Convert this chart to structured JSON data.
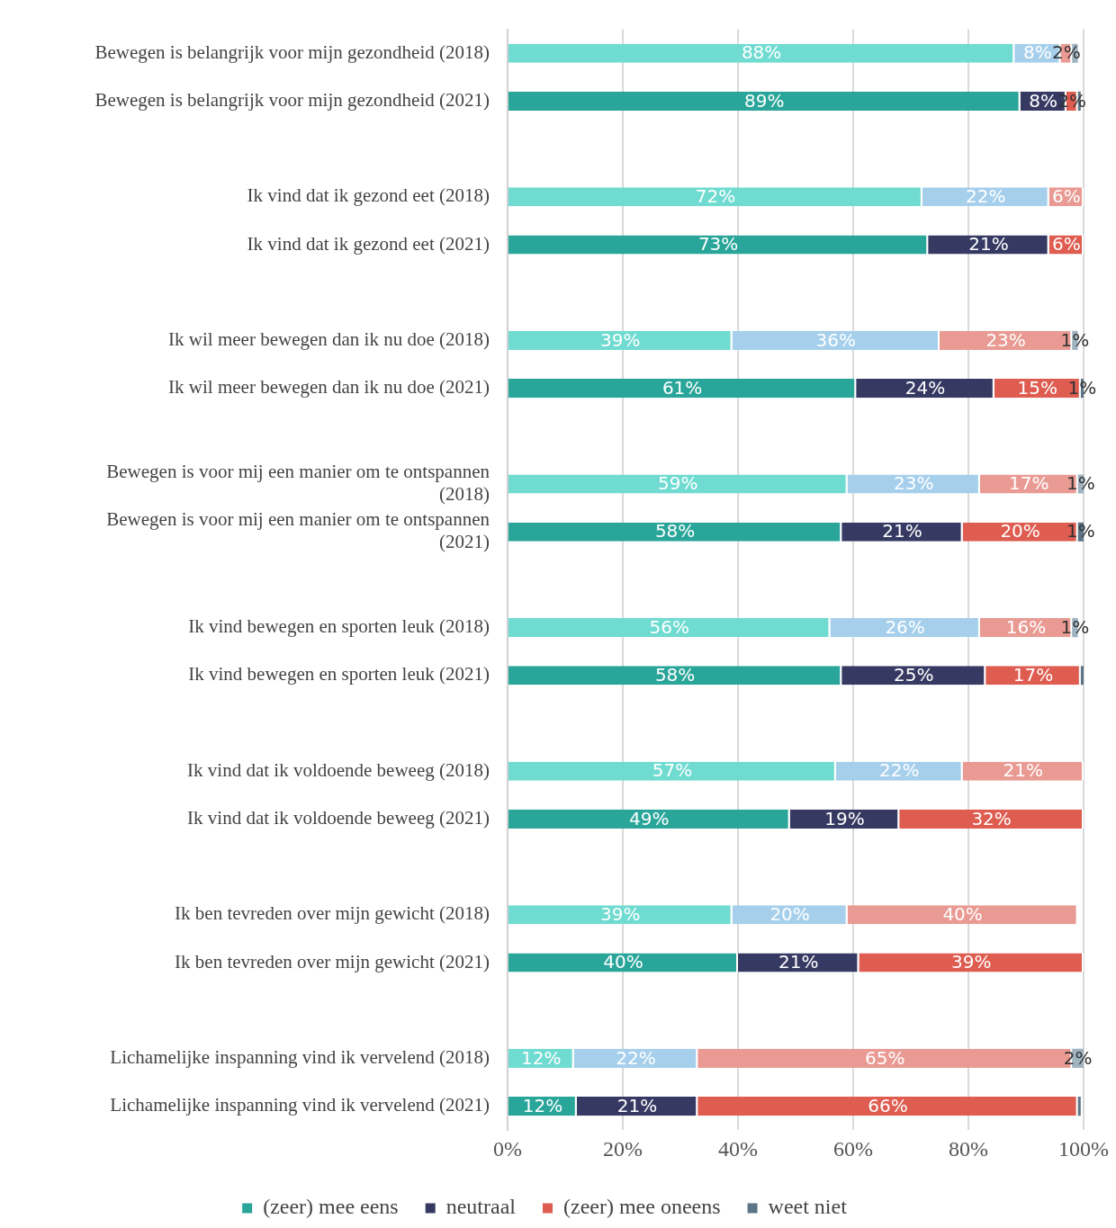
{
  "chart_data": {
    "type": "bar",
    "orientation": "horizontal",
    "stacked": true,
    "categories": [
      "Bewegen is belangrijk voor mijn gezondheid (2018)",
      "Bewegen is belangrijk voor mijn gezondheid (2021)",
      null,
      "Ik vind dat ik gezond eet (2018)",
      "Ik vind dat ik gezond eet (2021)",
      null,
      "Ik wil meer bewegen dan ik nu doe (2018)",
      "Ik wil meer bewegen dan ik nu doe (2021)",
      null,
      "Bewegen is voor mij een manier om te ontspannen (2018)",
      "Bewegen is voor mij een manier om te ontspannen (2021)",
      null,
      "Ik vind bewegen en sporten leuk (2018)",
      "Ik vind bewegen en sporten leuk (2021)",
      null,
      "Ik vind dat ik voldoende beweeg (2018)",
      "Ik vind dat ik voldoende beweeg (2021)",
      null,
      "Ik ben tevreden over mijn gewicht (2018)",
      "Ik ben tevreden over mijn gewicht (2021)",
      null,
      "Lichamelijke inspanning vind ik vervelend (2018)",
      "Lichamelijke inspanning vind ik vervelend (2021)"
    ],
    "series": [
      {
        "name": "(zeer) mee eens",
        "color": "#2aa59a",
        "colors": [
          "#6fdbd1",
          "#2aa59a",
          null,
          "#6fdbd1",
          "#2aa59a",
          null,
          "#6fdbd1",
          "#2aa59a",
          null,
          "#6fdbd1",
          "#2aa59a",
          null,
          "#6fdbd1",
          "#2aa59a",
          null,
          "#6fdbd1",
          "#2aa59a",
          null,
          "#6fdbd1",
          "#2aa59a",
          null,
          "#6fdbd1",
          "#2aa59a"
        ],
        "values": [
          88,
          89,
          null,
          72,
          73,
          null,
          39,
          60.5,
          null,
          59,
          58,
          null,
          56,
          58,
          null,
          57,
          49,
          null,
          39,
          40,
          null,
          11.5,
          12
        ],
        "value_labels": [
          "88%",
          "89%",
          null,
          "72%",
          "73%",
          null,
          "39%",
          "61%",
          null,
          "59%",
          "58%",
          null,
          "56%",
          "58%",
          null,
          "57%",
          "49%",
          null,
          "39%",
          "40%",
          null,
          "12%",
          "12%"
        ]
      },
      {
        "name": "neutraal",
        "color": "#363a63",
        "colors": [
          "#a6cfec",
          "#363a63",
          null,
          "#a6cfec",
          "#363a63",
          null,
          "#a6cfec",
          "#363a63",
          null,
          "#a6cfec",
          "#363a63",
          null,
          "#a6cfec",
          "#363a63",
          null,
          "#a6cfec",
          "#363a63",
          null,
          "#a6cfec",
          "#363a63",
          null,
          "#a6cfec",
          "#363a63"
        ],
        "values": [
          8,
          8,
          null,
          22,
          21,
          null,
          36,
          24,
          null,
          23,
          21,
          null,
          26,
          25,
          null,
          22,
          19,
          null,
          20,
          21,
          null,
          21.5,
          21
        ],
        "value_labels": [
          "8%",
          "8%",
          null,
          "22%",
          "21%",
          null,
          "36%",
          "24%",
          null,
          "23%",
          "21%",
          null,
          "26%",
          "25%",
          null,
          "22%",
          "19%",
          null,
          "20%",
          "21%",
          null,
          "22%",
          "21%"
        ]
      },
      {
        "name": "(zeer) mee oneens",
        "color": "#de5c50",
        "colors": [
          "#e99a93",
          "#de5c50",
          null,
          "#e99a93",
          "#de5c50",
          null,
          "#e99a93",
          "#de5c50",
          null,
          "#e99a93",
          "#de5c50",
          null,
          "#e99a93",
          "#de5c50",
          null,
          "#e99a93",
          "#de5c50",
          null,
          "#e99a93",
          "#de5c50",
          null,
          "#e99a93",
          "#de5c50"
        ],
        "values": [
          2,
          2,
          null,
          6,
          6,
          null,
          23,
          15,
          null,
          17,
          20,
          null,
          16,
          16.5,
          null,
          21,
          32,
          null,
          40,
          39,
          null,
          65,
          66
        ],
        "value_labels": [
          "2%",
          "2%",
          null,
          "6%",
          "6%",
          null,
          "23%",
          "15%",
          null,
          "17%",
          "20%",
          null,
          "16%",
          "17%",
          null,
          "21%",
          "32%",
          null,
          "40%",
          "39%",
          null,
          "65%",
          "66%"
        ]
      },
      {
        "name": "weet niet",
        "color": "#5d7587",
        "colors": [
          "#9fb3c1",
          "#5d7587",
          null,
          "#9fb3c1",
          "#5d7587",
          null,
          "#9fb3c1",
          "#5d7587",
          null,
          "#9fb3c1",
          "#5d7587",
          null,
          "#9fb3c1",
          "#5d7587",
          null,
          "#9fb3c1",
          "#5d7587",
          null,
          "#9fb3c1",
          "#5d7587",
          null,
          "#9fb3c1",
          "#5d7587"
        ],
        "values": [
          1,
          0.5,
          null,
          null,
          null,
          null,
          1,
          0.5,
          null,
          1,
          1,
          null,
          1,
          0.5,
          null,
          null,
          null,
          null,
          null,
          null,
          null,
          2,
          0.5
        ],
        "value_labels": [
          null,
          null,
          null,
          null,
          null,
          null,
          "1%",
          "1%",
          null,
          "1%",
          "1%",
          null,
          "1%",
          null,
          null,
          null,
          null,
          null,
          null,
          null,
          null,
          "2%",
          null
        ]
      }
    ],
    "xlim": [
      0,
      100
    ],
    "xticks": [
      {
        "value": 0,
        "label": "0%"
      },
      {
        "value": 20,
        "label": "20%"
      },
      {
        "value": 40,
        "label": "40%"
      },
      {
        "value": 60,
        "label": "60%"
      },
      {
        "value": 80,
        "label": "80%"
      },
      {
        "value": 100,
        "label": "100%"
      }
    ],
    "grid": "x",
    "legend": "bottom"
  }
}
